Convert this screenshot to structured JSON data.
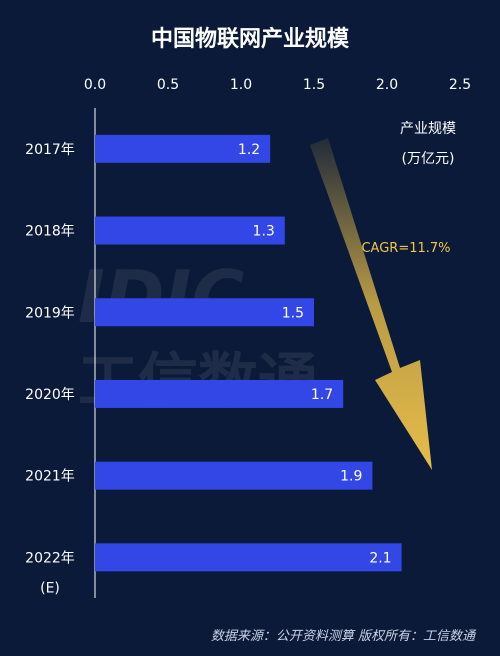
{
  "chart_data": {
    "type": "bar",
    "orientation": "horizontal",
    "title": "中国物联网产业规模",
    "categories": [
      "2017年",
      "2018年",
      "2019年",
      "2020年",
      "2021年",
      "2022年\n(E)"
    ],
    "values": [
      1.2,
      1.3,
      1.5,
      1.7,
      1.9,
      2.1
    ],
    "value_labels": [
      "1.2",
      "1.3",
      "1.5",
      "1.7",
      "1.9",
      "2.1"
    ],
    "xlim": [
      0,
      2.5
    ],
    "xticks": [
      "0.0",
      "0.5",
      "1.0",
      "1.5",
      "2.0",
      "2.5"
    ],
    "unit_label": [
      "产业规模",
      "(万亿元)"
    ],
    "annotation": "CAGR=11.7%",
    "grid": false,
    "bar_color": "#3347e6"
  },
  "watermark": {
    "latin": "IDIC",
    "cjk": "工信数通"
  },
  "source": "数据来源：公开资料测算  版权所有：工信数通",
  "colors": {
    "background": "#0b1a38",
    "bar": "#3347e6",
    "arrow": "#f3c64a"
  }
}
